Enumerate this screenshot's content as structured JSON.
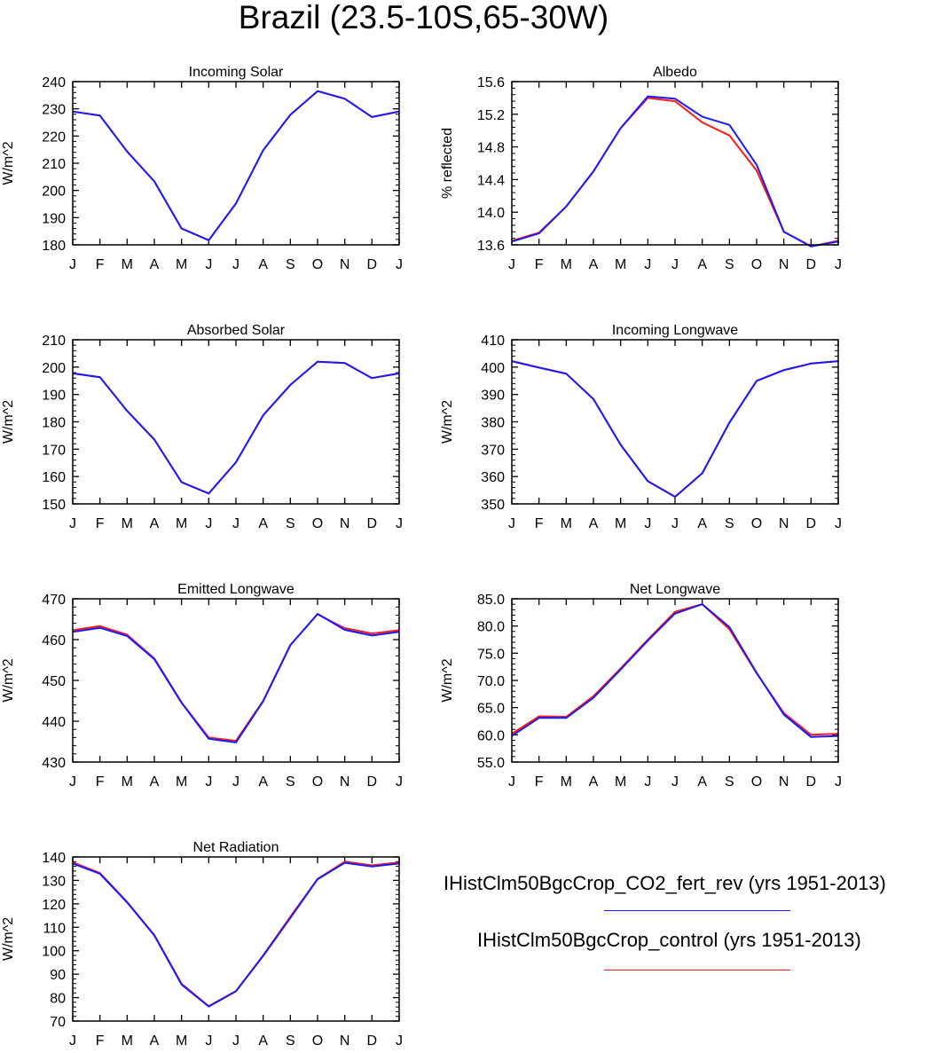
{
  "title": "Brazil (23.5-10S,65-30W)",
  "months": [
    "J",
    "F",
    "M",
    "A",
    "M",
    "J",
    "J",
    "A",
    "S",
    "O",
    "N",
    "D",
    "J"
  ],
  "colors": {
    "fert_rev": "#1a1aff",
    "control": "#ff1a1a",
    "axis": "#000000"
  },
  "legend": [
    {
      "label": "IHistClm50BgcCrop_CO2_fert_rev (yrs 1951-2013)",
      "color": "#1a1aff"
    },
    {
      "label": "IHistClm50BgcCrop_control (yrs 1951-2013)",
      "color": "#ff1a1a"
    }
  ],
  "chart_data": [
    {
      "type": "line",
      "title": "Incoming Solar",
      "ylabel": "W/m^2",
      "ylim": [
        180,
        240
      ],
      "yticks": [
        180,
        190,
        200,
        210,
        220,
        230,
        240
      ],
      "ytick_labels": [
        "180",
        "190",
        "200",
        "210",
        "220",
        "230",
        "240"
      ],
      "x": [
        "J",
        "F",
        "M",
        "A",
        "M",
        "J",
        "J",
        "A",
        "S",
        "O",
        "N",
        "D",
        "J"
      ],
      "series": [
        {
          "name": "IHistClm50BgcCrop_control (yrs 1951-2013)",
          "color": "#ff1a1a",
          "values": [
            229,
            227.5,
            214.3,
            203.3,
            186,
            181.7,
            195.2,
            214.8,
            227.8,
            236.5,
            233.7,
            227,
            229
          ]
        },
        {
          "name": "IHistClm50BgcCrop_CO2_fert_rev (yrs 1951-2013)",
          "color": "#1a1aff",
          "values": [
            229,
            227.5,
            214.3,
            203.3,
            186,
            181.7,
            195.2,
            214.8,
            227.8,
            236.5,
            233.7,
            227,
            229
          ]
        }
      ]
    },
    {
      "type": "line",
      "title": "Albedo",
      "ylabel": "% reflected",
      "ylim": [
        13.6,
        15.6
      ],
      "yticks": [
        13.6,
        14.0,
        14.4,
        14.8,
        15.2,
        15.6
      ],
      "ytick_labels": [
        "13.6",
        "14.0",
        "14.4",
        "14.8",
        "15.2",
        "15.6"
      ],
      "x": [
        "J",
        "F",
        "M",
        "A",
        "M",
        "J",
        "J",
        "A",
        "S",
        "O",
        "N",
        "D",
        "J"
      ],
      "series": [
        {
          "name": "IHistClm50BgcCrop_control (yrs 1951-2013)",
          "color": "#ff1a1a",
          "values": [
            13.65,
            13.75,
            14.07,
            14.5,
            15.03,
            15.4,
            15.36,
            15.1,
            14.94,
            14.51,
            13.76,
            13.58,
            13.65
          ]
        },
        {
          "name": "IHistClm50BgcCrop_CO2_fert_rev (yrs 1951-2013)",
          "color": "#1a1aff",
          "values": [
            13.64,
            13.74,
            14.07,
            14.5,
            15.03,
            15.42,
            15.39,
            15.17,
            15.07,
            14.58,
            13.76,
            13.58,
            13.64
          ]
        }
      ]
    },
    {
      "type": "line",
      "title": "Absorbed Solar",
      "ylabel": "W/m^2",
      "ylim": [
        150,
        210
      ],
      "yticks": [
        150,
        160,
        170,
        180,
        190,
        200,
        210
      ],
      "ytick_labels": [
        "150",
        "160",
        "170",
        "180",
        "190",
        "200",
        "210"
      ],
      "x": [
        "J",
        "F",
        "M",
        "A",
        "M",
        "J",
        "J",
        "A",
        "S",
        "O",
        "N",
        "D",
        "J"
      ],
      "series": [
        {
          "name": "IHistClm50BgcCrop_control (yrs 1951-2013)",
          "color": "#ff1a1a",
          "values": [
            197.7,
            196.3,
            184,
            173.5,
            157.9,
            153.8,
            165.2,
            182.4,
            193.5,
            202,
            201.5,
            196,
            197.7
          ]
        },
        {
          "name": "IHistClm50BgcCrop_CO2_fert_rev (yrs 1951-2013)",
          "color": "#1a1aff",
          "values": [
            197.7,
            196.3,
            184,
            173.5,
            157.9,
            153.8,
            165.2,
            182.4,
            193.5,
            202,
            201.5,
            196,
            197.7
          ]
        }
      ]
    },
    {
      "type": "line",
      "title": "Incoming Longwave",
      "ylabel": "W/m^2",
      "ylim": [
        350,
        410
      ],
      "yticks": [
        350,
        360,
        370,
        380,
        390,
        400,
        410
      ],
      "ytick_labels": [
        "350",
        "360",
        "370",
        "380",
        "390",
        "400",
        "410"
      ],
      "x": [
        "J",
        "F",
        "M",
        "A",
        "M",
        "J",
        "J",
        "A",
        "S",
        "O",
        "N",
        "D",
        "J"
      ],
      "series": [
        {
          "name": "IHistClm50BgcCrop_control (yrs 1951-2013)",
          "color": "#ff1a1a",
          "values": [
            402.2,
            399.8,
            397.6,
            388.3,
            371.6,
            358.3,
            352.6,
            361.2,
            379.7,
            395,
            398.9,
            401.3,
            402.2
          ]
        },
        {
          "name": "IHistClm50BgcCrop_CO2_fert_rev (yrs 1951-2013)",
          "color": "#1a1aff",
          "values": [
            402.2,
            399.8,
            397.6,
            388.3,
            371.6,
            358.3,
            352.6,
            361.2,
            379.7,
            395,
            398.9,
            401.3,
            402.2
          ]
        }
      ]
    },
    {
      "type": "line",
      "title": "Emitted Longwave",
      "ylabel": "W/m^2",
      "ylim": [
        430,
        470
      ],
      "yticks": [
        430,
        440,
        450,
        460,
        470
      ],
      "ytick_labels": [
        "430",
        "440",
        "450",
        "460",
        "470"
      ],
      "x": [
        "J",
        "F",
        "M",
        "A",
        "M",
        "J",
        "J",
        "A",
        "S",
        "O",
        "N",
        "D",
        "J"
      ],
      "series": [
        {
          "name": "IHistClm50BgcCrop_control (yrs 1951-2013)",
          "color": "#ff1a1a",
          "values": [
            462.3,
            463.3,
            461.2,
            455.4,
            444.6,
            436,
            435.2,
            445,
            458.7,
            466.2,
            462.8,
            461.5,
            462.3
          ]
        },
        {
          "name": "IHistClm50BgcCrop_CO2_fert_rev (yrs 1951-2013)",
          "color": "#1a1aff",
          "values": [
            461.9,
            462.9,
            460.9,
            455.2,
            444.5,
            435.7,
            434.8,
            444.9,
            458.6,
            466.3,
            462.4,
            461,
            461.9
          ]
        }
      ]
    },
    {
      "type": "line",
      "title": "Net Longwave",
      "ylabel": "W/m^2",
      "ylim": [
        55,
        85
      ],
      "yticks": [
        55,
        60,
        65,
        70,
        75,
        80,
        85
      ],
      "ytick_labels": [
        "55.0",
        "60.0",
        "65.0",
        "70.0",
        "75.0",
        "80.0",
        "85.0"
      ],
      "x": [
        "J",
        "F",
        "M",
        "A",
        "M",
        "J",
        "J",
        "A",
        "S",
        "O",
        "N",
        "D",
        "J"
      ],
      "series": [
        {
          "name": "IHistClm50BgcCrop_control (yrs 1951-2013)",
          "color": "#ff1a1a",
          "values": [
            60.2,
            63.4,
            63.3,
            67.1,
            72.2,
            77.5,
            82.6,
            84,
            79.4,
            71.3,
            64,
            60,
            60.2
          ]
        },
        {
          "name": "IHistClm50BgcCrop_CO2_fert_rev (yrs 1951-2013)",
          "color": "#1a1aff",
          "values": [
            59.8,
            63.1,
            63.1,
            66.8,
            72,
            77.3,
            82.3,
            84,
            79.8,
            71.4,
            63.7,
            59.6,
            59.8
          ]
        }
      ]
    },
    {
      "type": "line",
      "title": "Net Radiation",
      "ylabel": "W/m^2",
      "ylim": [
        70,
        140
      ],
      "yticks": [
        70,
        80,
        90,
        100,
        110,
        120,
        130,
        140
      ],
      "ytick_labels": [
        "70",
        "80",
        "90",
        "100",
        "110",
        "120",
        "130",
        "140"
      ],
      "x": [
        "J",
        "F",
        "M",
        "A",
        "M",
        "J",
        "J",
        "A",
        "S",
        "O",
        "N",
        "D",
        "J"
      ],
      "series": [
        {
          "name": "IHistClm50BgcCrop_control (yrs 1951-2013)",
          "color": "#ff1a1a",
          "values": [
            137.7,
            133.1,
            120.8,
            106.7,
            85.9,
            76.4,
            82.8,
            98,
            114.5,
            130.6,
            138,
            136.4,
            137.7
          ]
        },
        {
          "name": "IHistClm50BgcCrop_CO2_fert_rev (yrs 1951-2013)",
          "color": "#1a1aff",
          "values": [
            137.2,
            132.8,
            120.6,
            106.5,
            85.6,
            76.2,
            82.7,
            97.8,
            114,
            130.5,
            137.5,
            135.9,
            137.2
          ]
        }
      ]
    }
  ]
}
